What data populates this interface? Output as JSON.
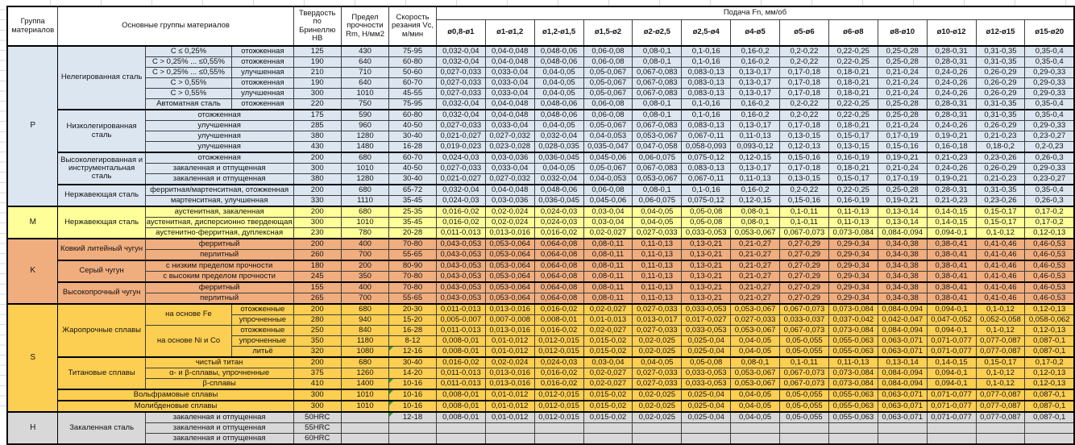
{
  "header": {
    "col_group": "Группа материалов",
    "col_main": "Основные группы материалов",
    "col_hb": "Твердость по Бринеллю HB",
    "col_rm": "Предел прочности Rm, Н/мм2",
    "col_vc": "Скорость резания Vc, м/мин",
    "feed_title": "Подача Fn, мм/об",
    "diameters": [
      "ø0,8-ø1",
      "ø1-ø1,2",
      "ø1,2-ø1,5",
      "ø1,5-ø2",
      "ø2-ø2,5",
      "ø2,5-ø4",
      "ø4-ø5",
      "ø5-ø6",
      "ø6-ø8",
      "ø8-ø10",
      "ø10-ø12",
      "ø12-ø15",
      "ø15-ø20"
    ]
  },
  "comment_marker_color": "#2f9e33",
  "feed_sets": {
    "A": [
      "0,032-0,04",
      "0,04-0,048",
      "0,048-0,06",
      "0,06-0,08",
      "0,08-0,1",
      "0,1-0,16",
      "0,16-0,2",
      "0,2-0,22",
      "0,22-0,25",
      "0,25-0,28",
      "0,28-0,31",
      "0,31-0,35",
      "0,35-0,4"
    ],
    "B": [
      "0,027-0,033",
      "0,033-0,04",
      "0,04-0,05",
      "0,05-0,067",
      "0,067-0,083",
      "0,083-0,13",
      "0,13-0,17",
      "0,17-0,18",
      "0,18-0,21",
      "0,21-0,24",
      "0,24-0,26",
      "0,26-0,29",
      "0,29-0,33"
    ],
    "C": [
      "0,021-0,027",
      "0,027-0,032",
      "0,032-0,04",
      "0,04-0,053",
      "0,053-0,067",
      "0,067-0,11",
      "0,11-0,13",
      "0,13-0,15",
      "0,15-0,17",
      "0,17-0,19",
      "0,19-0,21",
      "0,21-0,23",
      "0,23-0,27"
    ],
    "D": [
      "0,019-0,023",
      "0,023-0,028",
      "0,028-0,035",
      "0,035-0,047",
      "0,047-0,058",
      "0,058-0,093",
      "0,093-0,12",
      "0,12-0,13",
      "0,13-0,15",
      "0,15-0,16",
      "0,16-0,18",
      "0,18-0,2",
      "0,2-0,23"
    ],
    "E": [
      "0,024-0,03",
      "0,03-0,036",
      "0,036-0,045",
      "0,045-0,06",
      "0,06-0,075",
      "0,075-0,12",
      "0,12-0,15",
      "0,15-0,16",
      "0,16-0,19",
      "0,19-0,21",
      "0,21-0,23",
      "0,23-0,26",
      "0,26-0,3"
    ],
    "F": [
      "0,016-0,02",
      "0,02-0,024",
      "0,024-0,03",
      "0,03-0,04",
      "0,04-0,05",
      "0,05-0,08",
      "0,08-0,1",
      "0,1-0,11",
      "0,11-0,13",
      "0,13-0,14",
      "0,14-0,15",
      "0,15-0,17",
      "0,17-0,2"
    ],
    "G": [
      "0,011-0,013",
      "0,013-0,016",
      "0,016-0,02",
      "0,02-0,027",
      "0,027-0,033",
      "0,033-0,053",
      "0,053-0,067",
      "0,067-0,073",
      "0,073-0,084",
      "0,084-0,094",
      "0,094-0,1",
      "0,1-0,12",
      "0,12-0,13"
    ],
    "H": [
      "0,043-0,053",
      "0,053-0,064",
      "0,064-0,08",
      "0,08-0,11",
      "0,11-0,13",
      "0,13-0,21",
      "0,21-0,27",
      "0,27-0,29",
      "0,29-0,34",
      "0,34-0,38",
      "0,38-0,41",
      "0,41-0,46",
      "0,46-0,53"
    ],
    "I": [
      "0,005-0,007",
      "0,007-0,008",
      "0,008-0,01",
      "0,01-0,013",
      "0,013-0,017",
      "0,017-0,027",
      "0,027-0,033",
      "0,033-0,037",
      "0,037-0,042",
      "0,042-0,047",
      "0,047-0,052",
      "0,052-0,058",
      "0,058-0,062"
    ],
    "J": [
      "0,008-0,01",
      "0,01-0,012",
      "0,012-0,015",
      "0,015-0,02",
      "0,02-0,025",
      "0,025-0,04",
      "0,04-0,05",
      "0,05-0,055",
      "0,055-0,063",
      "0,063-0,071",
      "0,071-0,077",
      "0,077-0,087",
      "0,087-0,1"
    ],
    "EMPTY": [
      "",
      "",
      "",
      "",
      "",
      "",
      "",
      "",
      "",
      "",
      "",
      "",
      ""
    ]
  },
  "groups": [
    {
      "letter": "P",
      "color": "#dce6f1",
      "rows": [
        {
          "thick": true,
          "cells": [
            {
              "t": "Нелегированная сталь",
              "rs": 6,
              "w": 1
            },
            {
              "t": "C ≤ 0,25%"
            },
            {
              "t": "отожженная"
            }
          ],
          "hb": "125",
          "rm": "430",
          "vc": "75-95",
          "feeds": "A"
        },
        {
          "cells": [
            {
              "t": "C > 0,25% ... ≤0,55%"
            },
            {
              "t": "отожженная"
            }
          ],
          "hb": "190",
          "rm": "640",
          "vc": "60-80",
          "feeds": "A"
        },
        {
          "cells": [
            {
              "t": "C > 0,25% ... ≤0,55%"
            },
            {
              "t": "улучшенная"
            }
          ],
          "hb": "210",
          "rm": "710",
          "vc": "50-60",
          "feeds": "B"
        },
        {
          "cells": [
            {
              "t": "C > 0,55%"
            },
            {
              "t": "отожженная"
            }
          ],
          "hb": "190",
          "rm": "640",
          "vc": "60-70",
          "feeds": "B"
        },
        {
          "cells": [
            {
              "t": "C > 0,55%"
            },
            {
              "t": "улучшенная"
            }
          ],
          "hb": "300",
          "rm": "1010",
          "vc": "45-55",
          "feeds": "B"
        },
        {
          "cells": [
            {
              "t": "Автоматная сталь"
            },
            {
              "t": "отожженная"
            }
          ],
          "hb": "220",
          "rm": "750",
          "vc": "75-95",
          "feeds": "A"
        },
        {
          "thick": true,
          "cells": [
            {
              "t": "Низколегированная сталь",
              "rs": 4,
              "w": 1
            },
            {
              "t": "отожженная",
              "cs": 2
            }
          ],
          "hb": "175",
          "rm": "590",
          "vc": "60-80",
          "feeds": "A"
        },
        {
          "cells": [
            {
              "t": "улучшенная",
              "cs": 2
            }
          ],
          "hb": "285",
          "rm": "960",
          "vc": "40-50",
          "feeds": "B"
        },
        {
          "cells": [
            {
              "t": "улучшенная",
              "cs": 2
            }
          ],
          "hb": "380",
          "rm": "1280",
          "vc": "30-40",
          "feeds": "C"
        },
        {
          "cells": [
            {
              "t": "улучшенная",
              "cs": 2
            }
          ],
          "hb": "430",
          "rm": "1480",
          "vc": "16-28",
          "feeds": "D"
        },
        {
          "thick": true,
          "cells": [
            {
              "t": "Высоколегированная и инструментальная сталь",
              "rs": 3,
              "w": 1
            },
            {
              "t": "отожженная",
              "cs": 2
            }
          ],
          "hb": "200",
          "rm": "680",
          "vc": "60-70",
          "feeds": "E"
        },
        {
          "cells": [
            {
              "t": "закаленная и отпущенная",
              "cs": 2
            }
          ],
          "hb": "300",
          "rm": "1010",
          "vc": "40-50",
          "feeds": "B"
        },
        {
          "cells": [
            {
              "t": "закаленная и отпущенная",
              "cs": 2
            }
          ],
          "hb": "380",
          "rm": "1280",
          "vc": "30-40",
          "feeds": "C"
        },
        {
          "thick": true,
          "cells": [
            {
              "t": "Нержавеющая сталь",
              "rs": 2,
              "w": 1
            },
            {
              "t": "ферритная/мартенситная, отожженная",
              "cs": 2
            }
          ],
          "hb": "200",
          "rm": "680",
          "vc": "65-72",
          "feeds": "A"
        },
        {
          "cells": [
            {
              "t": "мартенситная, улучшенная",
              "cs": 2
            }
          ],
          "hb": "330",
          "rm": "1110",
          "vc": "35-45",
          "feeds": "E"
        }
      ]
    },
    {
      "letter": "M",
      "color": "#ffff99",
      "rows": [
        {
          "thick": true,
          "cells": [
            {
              "t": "Нержавеющая сталь",
              "rs": 3,
              "w": 1
            },
            {
              "t": "аустенитная, закаленная",
              "cs": 2
            }
          ],
          "hb": "200",
          "rm": "680",
          "vc": "25-35",
          "feeds": "F"
        },
        {
          "cells": [
            {
              "t": "аустенитная, дисперсионно твердеющая",
              "cs": 2
            }
          ],
          "hb": "300",
          "rm": "1010",
          "vc": "35-45",
          "feeds": "F"
        },
        {
          "cells": [
            {
              "t": "аустенитно-ферритная, дуплексная",
              "cs": 2
            }
          ],
          "hb": "230",
          "rm": "780",
          "vc": "20-28",
          "feeds": "G"
        }
      ]
    },
    {
      "letter": "K",
      "color": "#f0ad7e",
      "rows": [
        {
          "thick": true,
          "cells": [
            {
              "t": "Ковкий литейный чугун",
              "rs": 2,
              "w": 1
            },
            {
              "t": "ферритный",
              "cs": 2
            }
          ],
          "hb": "200",
          "rm": "400",
          "vc": "70-80",
          "feeds": "H"
        },
        {
          "cells": [
            {
              "t": "перлитный",
              "cs": 2
            }
          ],
          "hb": "260",
          "rm": "700",
          "vc": "55-65",
          "feeds": "H"
        },
        {
          "thick": true,
          "cells": [
            {
              "t": "Серый чугун",
              "rs": 2,
              "w": 1
            },
            {
              "t": "с низким пределом прочности",
              "cs": 2
            }
          ],
          "hb": "180",
          "rm": "200",
          "vc": "80-90",
          "feeds": "H"
        },
        {
          "cells": [
            {
              "t": "с высоким пределом прочности",
              "cs": 2
            }
          ],
          "hb": "245",
          "rm": "350",
          "vc": "70-80",
          "feeds": "H"
        },
        {
          "thick": true,
          "cells": [
            {
              "t": "Высокопрочный чугун",
              "rs": 2,
              "w": 1
            },
            {
              "t": "ферритный",
              "cs": 2
            }
          ],
          "hb": "155",
          "rm": "400",
          "vc": "70-80",
          "feeds": "H"
        },
        {
          "cells": [
            {
              "t": "перлитный",
              "cs": 2
            }
          ],
          "hb": "265",
          "rm": "700",
          "vc": "55-65",
          "feeds": "H"
        }
      ]
    },
    {
      "letter": "S",
      "color": "#fcce51",
      "rows": [
        {
          "thick": true,
          "cells": [
            {
              "t": "Жаропрочные сплавы",
              "rs": 5,
              "w": 1
            },
            {
              "t": "на основе Fe",
              "rs": 2
            },
            {
              "t": "отожженные"
            }
          ],
          "hb": "200",
          "rm": "680",
          "vc": "20-30",
          "feeds": "G"
        },
        {
          "cells": [
            {
              "t": "упрочненные"
            }
          ],
          "hb": "280",
          "rm": "940",
          "vc": "15-20",
          "feeds": "I"
        },
        {
          "cells": [
            {
              "t": "на основе Ni и Co",
              "rs": 3
            },
            {
              "t": "отожженные"
            }
          ],
          "hb": "250",
          "rm": "840",
          "vc": "16-28",
          "feeds": "G"
        },
        {
          "cells": [
            {
              "t": "упрочненные"
            }
          ],
          "hb": "350",
          "rm": "1180",
          "vc": "8-12",
          "feeds": "J"
        },
        {
          "cells": [
            {
              "t": "литьё"
            }
          ],
          "hb": "320",
          "rm": "1080",
          "vc": "12-16",
          "vc_mark": true,
          "feeds": "J"
        },
        {
          "thick": true,
          "cells": [
            {
              "t": "Титановые сплавы",
              "rs": 3,
              "w": 1
            },
            {
              "t": "чистый титан",
              "cs": 2
            }
          ],
          "hb": "200",
          "rm": "680",
          "vc": "30-40",
          "feeds": "F"
        },
        {
          "cells": [
            {
              "t": "α- и β-сплавы, упрочненные",
              "cs": 2
            }
          ],
          "hb": "375",
          "rm": "1260",
          "vc": "14-20",
          "feeds": "G"
        },
        {
          "cells": [
            {
              "t": "β-сплавы",
              "cs": 2
            }
          ],
          "hb": "410",
          "rm": "1400",
          "vc": "10-16",
          "vc_mark": true,
          "feeds": "G"
        },
        {
          "thick": true,
          "cells": [
            {
              "t": "Вольфрамовые сплавы",
              "cs": 3
            }
          ],
          "hb": "300",
          "rm": "1010",
          "vc": "10-16",
          "vc_mark": true,
          "feeds": "J"
        },
        {
          "thick": true,
          "cells": [
            {
              "t": "Молибденовые сплавы",
              "cs": 3
            }
          ],
          "hb": "300",
          "rm": "1010",
          "vc": "10-16",
          "vc_mark": true,
          "feeds": "J"
        }
      ]
    },
    {
      "letter": "H",
      "color": "#d8d8d8",
      "rows": [
        {
          "thick": true,
          "cells": [
            {
              "t": "Закаленная сталь",
              "rs": 3,
              "w": 1
            },
            {
              "t": "закаленная и отпущенная",
              "cs": 2
            }
          ],
          "hb": "50HRC",
          "rm": "",
          "vc": "12-18",
          "vc_mark": true,
          "feeds": "J"
        },
        {
          "cells": [
            {
              "t": "закаленная и отпущенная",
              "cs": 2
            }
          ],
          "hb": "55HRC",
          "rm": "",
          "vc": "",
          "feeds": "EMPTY"
        },
        {
          "cells": [
            {
              "t": "закаленная и отпущенная",
              "cs": 2
            }
          ],
          "hb": "60HRC",
          "rm": "",
          "vc": "",
          "feeds": "EMPTY"
        }
      ]
    }
  ]
}
